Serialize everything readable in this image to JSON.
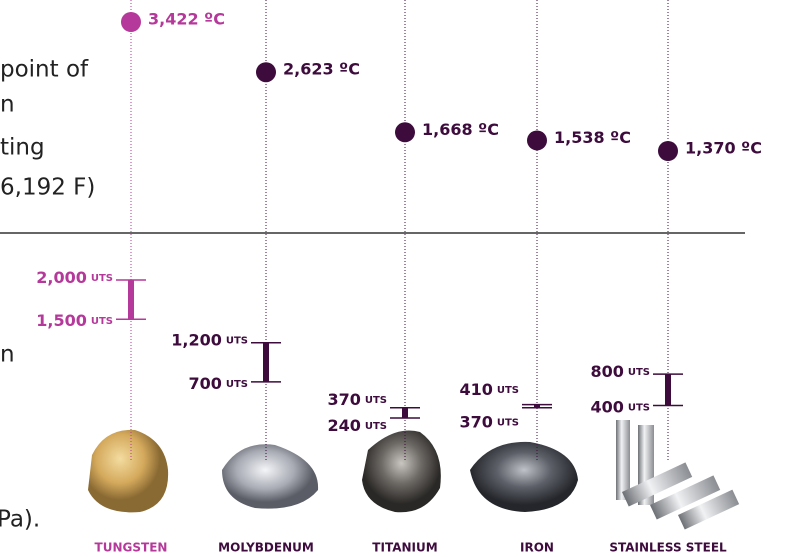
{
  "left_text_top": [
    "point of",
    "n",
    "ting",
    "6,192 F)"
  ],
  "left_text_bottom": [
    "n",
    "Pa)."
  ],
  "uts_unit": "UTS",
  "materials": [
    {
      "name": "TUNGSTEN",
      "color": "#b5399a",
      "melting_point": 3422,
      "melting_label": "3,422 ºC",
      "uts_high": 2000,
      "uts_high_label": "2,000",
      "uts_low": 1500,
      "uts_low_label": "1,500"
    },
    {
      "name": "MOLYBDENUM",
      "color": "#3d0c3d",
      "melting_point": 2623,
      "melting_label": "2,623 ºC",
      "uts_high": 1200,
      "uts_high_label": "1,200",
      "uts_low": 700,
      "uts_low_label": "700"
    },
    {
      "name": "TITANIUM",
      "color": "#3d0c3d",
      "melting_point": 1668,
      "melting_label": "1,668 ºC",
      "uts_high": 370,
      "uts_high_label": "370",
      "uts_low": 240,
      "uts_low_label": "240"
    },
    {
      "name": "IRON",
      "color": "#3d0c3d",
      "melting_point": 1538,
      "melting_label": "1,538 ºC",
      "uts_high": 410,
      "uts_high_label": "410",
      "uts_low": 370,
      "uts_low_label": "370"
    },
    {
      "name": "STAINLESS STEEL",
      "color": "#3d0c3d",
      "melting_point": 1370,
      "melting_label": "1,370 ºC",
      "uts_high": 800,
      "uts_high_label": "800",
      "uts_low": 400,
      "uts_low_label": "400"
    }
  ]
}
